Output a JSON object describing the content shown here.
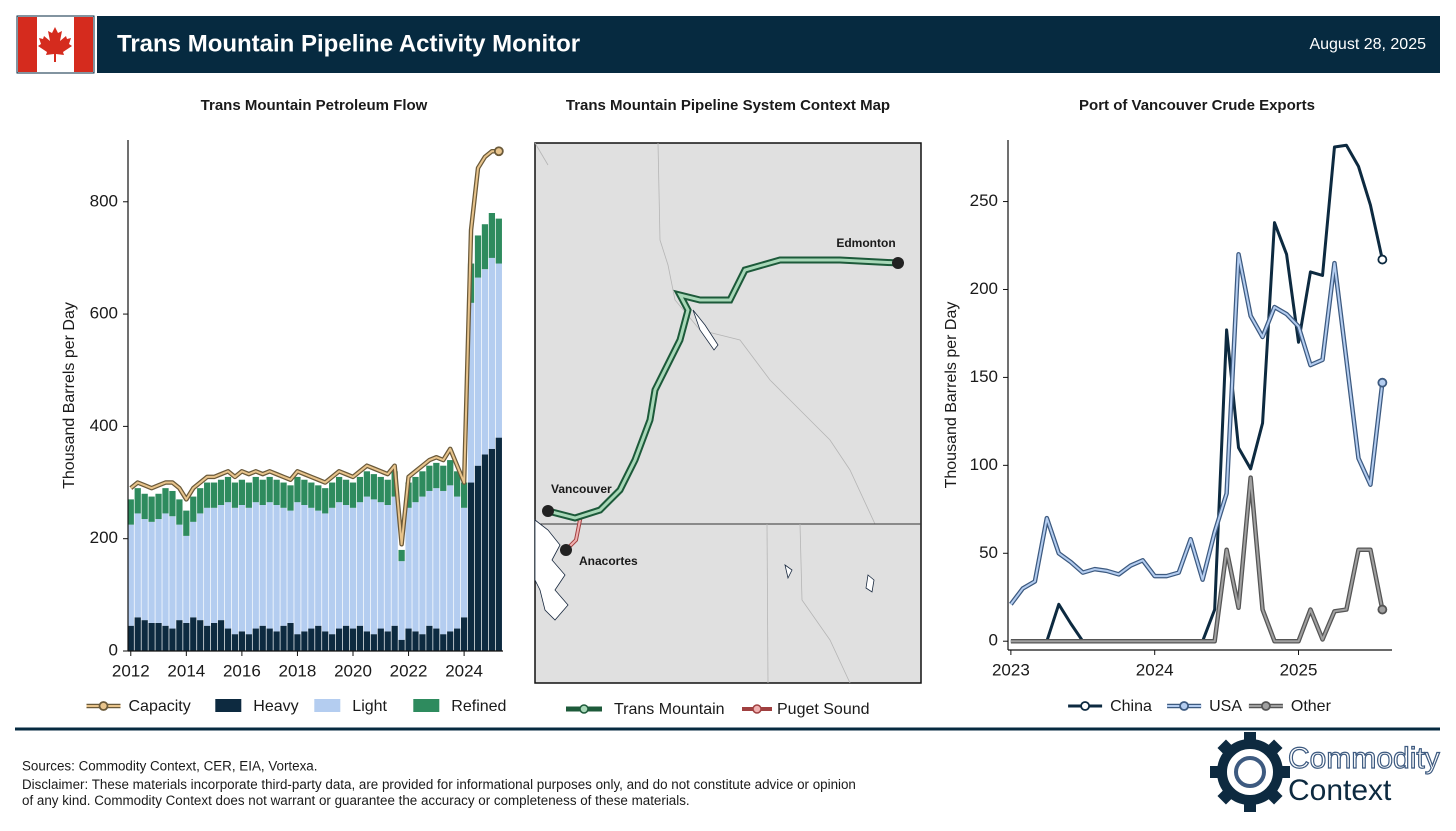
{
  "header": {
    "title": "Trans Mountain Pipeline Activity Monitor",
    "date": "August 28, 2025"
  },
  "chart_data": [
    {
      "type": "bar",
      "stacked": true,
      "title": "Trans Mountain Petroleum Flow",
      "ylabel": "Thousand Barrels per Day",
      "x": [
        2012,
        2012.25,
        2012.5,
        2012.75,
        2013,
        2013.25,
        2013.5,
        2013.75,
        2014,
        2014.25,
        2014.5,
        2014.75,
        2015,
        2015.25,
        2015.5,
        2015.75,
        2016,
        2016.25,
        2016.5,
        2016.75,
        2017,
        2017.25,
        2017.5,
        2017.75,
        2018,
        2018.25,
        2018.5,
        2018.75,
        2019,
        2019.25,
        2019.5,
        2019.75,
        2020,
        2020.25,
        2020.5,
        2020.75,
        2021,
        2021.25,
        2021.5,
        2021.75,
        2022,
        2022.25,
        2022.5,
        2022.75,
        2023,
        2023.25,
        2023.5,
        2023.75,
        2024,
        2024.25,
        2024.5,
        2024.75,
        2025,
        2025.25
      ],
      "series": [
        {
          "name": "Capacity",
          "type": "line",
          "color": "#e8c48c",
          "edge": "#6b5a3a",
          "values": [
            290,
            300,
            295,
            290,
            295,
            300,
            300,
            290,
            270,
            290,
            300,
            310,
            310,
            315,
            320,
            310,
            320,
            315,
            320,
            315,
            320,
            315,
            310,
            305,
            320,
            315,
            310,
            305,
            300,
            310,
            320,
            315,
            310,
            320,
            330,
            325,
            320,
            315,
            330,
            190,
            310,
            320,
            330,
            340,
            345,
            340,
            360,
            330,
            300,
            750,
            860,
            880,
            890,
            890
          ]
        },
        {
          "name": "Heavy",
          "color": "#0d2a40",
          "values": [
            45,
            60,
            55,
            50,
            50,
            45,
            40,
            55,
            50,
            60,
            55,
            45,
            50,
            55,
            40,
            30,
            35,
            30,
            40,
            45,
            40,
            35,
            45,
            50,
            30,
            35,
            40,
            45,
            35,
            30,
            40,
            45,
            40,
            45,
            35,
            30,
            40,
            35,
            45,
            20,
            40,
            35,
            30,
            45,
            40,
            30,
            35,
            40,
            60,
            300,
            330,
            350,
            360,
            380
          ]
        },
        {
          "name": "Light",
          "color": "#b4cdf0",
          "values": [
            180,
            185,
            180,
            180,
            185,
            200,
            200,
            170,
            155,
            170,
            190,
            210,
            205,
            205,
            225,
            225,
            225,
            225,
            225,
            215,
            225,
            225,
            210,
            200,
            235,
            225,
            215,
            205,
            210,
            225,
            225,
            215,
            215,
            220,
            240,
            240,
            225,
            225,
            230,
            140,
            215,
            230,
            245,
            240,
            250,
            255,
            260,
            235,
            195,
            320,
            335,
            330,
            340,
            310
          ]
        },
        {
          "name": "Refined",
          "color": "#2e8b5e",
          "values": [
            45,
            45,
            45,
            45,
            45,
            45,
            45,
            45,
            45,
            45,
            45,
            45,
            45,
            45,
            45,
            45,
            45,
            45,
            45,
            45,
            45,
            45,
            45,
            45,
            45,
            45,
            45,
            45,
            45,
            45,
            45,
            45,
            45,
            45,
            45,
            45,
            45,
            45,
            45,
            20,
            45,
            45,
            45,
            45,
            45,
            45,
            45,
            45,
            45,
            70,
            75,
            80,
            80,
            80
          ]
        }
      ],
      "xlim": [
        2011.9,
        2025.4
      ],
      "xticks": [
        2012,
        2014,
        2016,
        2018,
        2020,
        2022,
        2024
      ],
      "ylim": [
        0,
        910
      ],
      "yticks": [
        0,
        200,
        400,
        600,
        800
      ],
      "legend": "bottom"
    },
    {
      "type": "line",
      "title": "Port of Vancouver Crude Exports",
      "ylabel": "Thousand Barrels per Day",
      "x": [
        2023,
        2023.083,
        2023.167,
        2023.25,
        2023.333,
        2023.417,
        2023.5,
        2023.583,
        2023.667,
        2023.75,
        2023.833,
        2023.917,
        2024,
        2024.083,
        2024.167,
        2024.25,
        2024.333,
        2024.417,
        2024.5,
        2024.583,
        2024.667,
        2024.75,
        2024.833,
        2024.917,
        2025,
        2025.083,
        2025.167,
        2025.25,
        2025.333,
        2025.417,
        2025.5,
        2025.583
      ],
      "series": [
        {
          "name": "China",
          "color": "#0d2a40",
          "values": [
            0,
            0,
            0,
            0,
            21,
            10,
            0,
            0,
            0,
            0,
            0,
            0,
            0,
            0,
            0,
            0,
            0,
            18,
            177,
            110,
            98,
            124,
            238,
            220,
            170,
            210,
            208,
            281,
            282,
            270,
            248,
            217
          ]
        },
        {
          "name": "USA",
          "color": "#b4cdf0",
          "edge": "#3d5a80",
          "values": [
            21,
            30,
            34,
            70,
            50,
            45,
            39,
            41,
            40,
            38,
            43,
            46,
            37,
            37,
            39,
            58,
            35,
            62,
            84,
            220,
            185,
            173,
            190,
            186,
            179,
            157,
            160,
            215,
            160,
            104,
            89,
            147
          ]
        },
        {
          "name": "Other",
          "color": "#a0a0a0",
          "edge": "#555555",
          "values": [
            0,
            0,
            0,
            0,
            0,
            0,
            0,
            0,
            0,
            0,
            0,
            0,
            0,
            0,
            0,
            0,
            0,
            0,
            52,
            19,
            93,
            18,
            0,
            0,
            0,
            18,
            1,
            17,
            18,
            52,
            52,
            18
          ]
        }
      ],
      "xlim": [
        2022.98,
        2025.65
      ],
      "xticks": [
        2023,
        2024,
        2025
      ],
      "ylim": [
        -5,
        285
      ],
      "yticks": [
        0,
        50,
        100,
        150,
        200,
        250
      ],
      "legend": "bottom"
    }
  ],
  "map": {
    "title": "Trans Mountain Pipeline System Context Map",
    "places": [
      "Edmonton",
      "Vancouver",
      "Anacortes"
    ],
    "legend": [
      {
        "name": "Trans Mountain",
        "color": "#2e8b5e"
      },
      {
        "name": "Puget Sound",
        "color": "#e89a9a"
      }
    ]
  },
  "footer": {
    "sources": "Sources: Commodity Context, CER, EIA, Vortexa.",
    "disclaimer": "Disclaimer: These materials incorporate third-party data, are provided for informational purposes only, and do not constitute advice or opinion of any kind. Commodity Context does not warrant or guarantee the accuracy or completeness of these materials.",
    "logo": [
      "Commodity",
      "Context"
    ]
  }
}
